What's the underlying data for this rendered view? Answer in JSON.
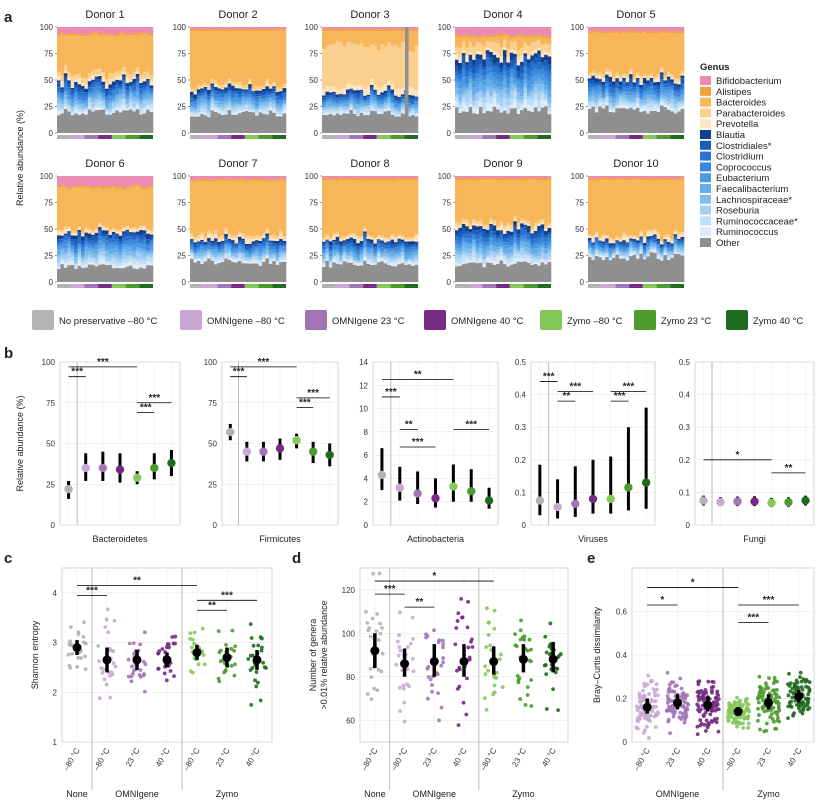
{
  "panels": {
    "a": "a",
    "b": "b",
    "c": "c",
    "d": "d",
    "e": "e"
  },
  "panel_a": {
    "ylabel": "Relative abundance (%)",
    "yticks": [
      "0",
      "25",
      "50",
      "75",
      "100"
    ],
    "donors": [
      {
        "title": "Donor 1",
        "top": [
          0.06,
          0.33,
          0.05,
          0.02
        ],
        "blue": 0.3,
        "other": 0.2
      },
      {
        "title": "Donor 2",
        "top": [
          0.02,
          0.5,
          0.03,
          0.01
        ],
        "blue": 0.25,
        "other": 0.19
      },
      {
        "title": "Donor 3",
        "top": [
          0.02,
          0.12,
          0.4,
          0.05
        ],
        "blue": 0.22,
        "other": 0.19
      },
      {
        "title": "Donor 4",
        "top": [
          0.08,
          0.04,
          0.08,
          0.03
        ],
        "blue": 0.55,
        "other": 0.22
      },
      {
        "title": "Donor 5",
        "top": [
          0.04,
          0.38,
          0.03,
          0.02
        ],
        "blue": 0.3,
        "other": 0.23
      },
      {
        "title": "Donor 6",
        "top": [
          0.1,
          0.38,
          0.02,
          0.02
        ],
        "blue": 0.33,
        "other": 0.15
      },
      {
        "title": "Donor 7",
        "top": [
          0.03,
          0.5,
          0.03,
          0.02
        ],
        "blue": 0.22,
        "other": 0.2
      },
      {
        "title": "Donor 8",
        "top": [
          0.02,
          0.52,
          0.02,
          0.02
        ],
        "blue": 0.24,
        "other": 0.18
      },
      {
        "title": "Donor 9",
        "top": [
          0.02,
          0.4,
          0.03,
          0.02
        ],
        "blue": 0.35,
        "other": 0.18
      },
      {
        "title": "Donor 10",
        "top": [
          0.02,
          0.52,
          0.02,
          0.02
        ],
        "blue": 0.17,
        "other": 0.25
      }
    ],
    "genus_title": "Genus",
    "genera": [
      {
        "name": "Bifidobacterium",
        "color": "#e98bb2"
      },
      {
        "name": "Alistipes",
        "color": "#f2a23a"
      },
      {
        "name": "Bacteroides",
        "color": "#f8b65a"
      },
      {
        "name": "Parabacteroides",
        "color": "#fbd08f"
      },
      {
        "name": "Prevotella",
        "color": "#fde5c2"
      },
      {
        "name": "Blautia",
        "color": "#103f8e"
      },
      {
        "name": "Clostridiales*",
        "color": "#1a5cb8"
      },
      {
        "name": "Clostridium",
        "color": "#2a72d0"
      },
      {
        "name": "Coprococcus",
        "color": "#3a88dc"
      },
      {
        "name": "Eubacterium",
        "color": "#4c9ae2"
      },
      {
        "name": "Faecalibacterium",
        "color": "#65ace8"
      },
      {
        "name": "Lachnospiraceae*",
        "color": "#83bdee"
      },
      {
        "name": "Roseburia",
        "color": "#a3cff3"
      },
      {
        "name": "Ruminococcaceae*",
        "color": "#c0def7"
      },
      {
        "name": "Ruminococcus",
        "color": "#dcecfa"
      },
      {
        "name": "Other",
        "color": "#8f8f8f"
      }
    ]
  },
  "conditions": [
    {
      "label": "No preservative –80 °C",
      "color": "#b3b3b3"
    },
    {
      "label": "OMNIgene –80 °C",
      "color": "#c9a8d3"
    },
    {
      "label": "OMNIgene 23 °C",
      "color": "#a276b6"
    },
    {
      "label": "OMNIgene 40 °C",
      "color": "#762a83"
    },
    {
      "label": "Zymo –80 °C",
      "color": "#85c85a"
    },
    {
      "label": "Zymo 23 °C",
      "color": "#4d9a2e"
    },
    {
      "label": "Zymo 40 °C",
      "color": "#1f6b1f"
    }
  ],
  "chart_data": [
    {
      "type": "scatter",
      "id": "b1",
      "title": "Bacteroidetes",
      "ylabel": "Relative abundance (%)",
      "ylim": [
        0,
        100
      ],
      "yticks": [
        "0",
        "25",
        "50",
        "75",
        "100"
      ],
      "median": [
        22,
        35,
        35,
        34,
        29,
        35,
        38
      ],
      "low": [
        16,
        27,
        27,
        26,
        25,
        28,
        30
      ],
      "high": [
        27,
        44,
        45,
        44,
        33,
        44,
        46
      ],
      "brackets": [
        {
          "from": 0,
          "to": 1,
          "y": 91,
          "label": "***"
        },
        {
          "from": 0,
          "to": 4,
          "y": 97,
          "label": "***"
        },
        {
          "from": 4,
          "to": 6,
          "y": 75,
          "label": "***"
        },
        {
          "from": 4,
          "to": 5,
          "y": 69,
          "label": "***"
        }
      ]
    },
    {
      "type": "scatter",
      "id": "b2",
      "title": "Firmicutes",
      "ylim": [
        0,
        100
      ],
      "yticks": [
        "0",
        "25",
        "50",
        "75",
        "100"
      ],
      "median": [
        57,
        45,
        45,
        47,
        52,
        45,
        43
      ],
      "low": [
        52,
        39,
        39,
        40,
        47,
        38,
        36
      ],
      "high": [
        62,
        51,
        51,
        53,
        56,
        51,
        50
      ],
      "brackets": [
        {
          "from": 0,
          "to": 1,
          "y": 91,
          "label": "***"
        },
        {
          "from": 0,
          "to": 4,
          "y": 97,
          "label": "***"
        },
        {
          "from": 4,
          "to": 6,
          "y": 78,
          "label": "***"
        },
        {
          "from": 4,
          "to": 5,
          "y": 72,
          "label": "***"
        }
      ]
    },
    {
      "type": "scatter",
      "id": "b3",
      "title": "Actinobacteria",
      "ylim": [
        0,
        14
      ],
      "yticks": [
        "0",
        "2",
        "4",
        "6",
        "8",
        "10",
        "12",
        "14"
      ],
      "median": [
        4.3,
        3.2,
        2.7,
        2.3,
        3.3,
        2.9,
        2.1
      ],
      "low": [
        3.0,
        2.1,
        1.8,
        1.5,
        2.0,
        2.0,
        1.4
      ],
      "high": [
        6.6,
        5.0,
        4.6,
        4.0,
        5.2,
        4.8,
        3.2
      ],
      "brackets": [
        {
          "from": 0,
          "to": 1,
          "y": 11,
          "label": "***"
        },
        {
          "from": 0,
          "to": 4,
          "y": 12.5,
          "label": "**"
        },
        {
          "from": 1,
          "to": 2,
          "y": 8.2,
          "label": "**"
        },
        {
          "from": 1,
          "to": 3,
          "y": 6.7,
          "label": "***"
        },
        {
          "from": 4,
          "to": 6,
          "y": 8.2,
          "label": "***"
        }
      ]
    },
    {
      "type": "scatter",
      "id": "b4",
      "title": "Viruses",
      "ylim": [
        0,
        0.5
      ],
      "yticks": [
        "0",
        "0.1",
        "0.2",
        "0.3",
        "0.4",
        "0.5"
      ],
      "median": [
        0.075,
        0.055,
        0.065,
        0.08,
        0.08,
        0.115,
        0.13
      ],
      "low": [
        0.03,
        0.02,
        0.025,
        0.035,
        0.035,
        0.045,
        0.05
      ],
      "high": [
        0.185,
        0.14,
        0.18,
        0.2,
        0.21,
        0.3,
        0.36
      ],
      "brackets": [
        {
          "from": 0,
          "to": 1,
          "y": 0.44,
          "label": "***"
        },
        {
          "from": 1,
          "to": 3,
          "y": 0.41,
          "label": "***"
        },
        {
          "from": 1,
          "to": 2,
          "y": 0.38,
          "label": "**"
        },
        {
          "from": 4,
          "to": 6,
          "y": 0.41,
          "label": "***"
        },
        {
          "from": 4,
          "to": 5,
          "y": 0.38,
          "label": "***"
        }
      ]
    },
    {
      "type": "scatter",
      "id": "b5",
      "title": "Fungi",
      "ylim": [
        0,
        0.5
      ],
      "yticks": [
        "0",
        "0.1",
        "0.2",
        "0.3",
        "0.4",
        "0.5"
      ],
      "median": [
        0.075,
        0.07,
        0.072,
        0.072,
        0.068,
        0.07,
        0.075
      ],
      "low": [
        0.06,
        0.058,
        0.058,
        0.058,
        0.055,
        0.056,
        0.06
      ],
      "high": [
        0.09,
        0.085,
        0.087,
        0.088,
        0.083,
        0.085,
        0.09
      ],
      "brackets": [
        {
          "from": 0,
          "to": 4,
          "y": 0.2,
          "label": "*"
        },
        {
          "from": 4,
          "to": 6,
          "y": 0.16,
          "label": "**"
        }
      ]
    },
    {
      "type": "scatter",
      "id": "c",
      "ylabel": "Shannon entropy",
      "ylim": [
        1,
        4.5
      ],
      "yticks": [
        "1",
        "2",
        "3",
        "4"
      ],
      "xticks": [
        "–80 °C",
        "–80 °C",
        "23 °C",
        "40 °C",
        "–80 °C",
        "23 °C",
        "40 °C"
      ],
      "groups": [
        "None",
        "OMNIgene",
        "Zymo"
      ],
      "median": [
        2.9,
        2.65,
        2.65,
        2.65,
        2.8,
        2.7,
        2.65
      ],
      "low": [
        2.75,
        2.4,
        2.45,
        2.5,
        2.65,
        2.5,
        2.45
      ],
      "high": [
        3.05,
        2.9,
        2.85,
        2.8,
        2.95,
        2.9,
        2.85
      ],
      "brackets": [
        {
          "from": 0,
          "to": 1,
          "y": 3.95,
          "label": "***"
        },
        {
          "from": 0,
          "to": 4,
          "y": 4.15,
          "label": "**"
        },
        {
          "from": 4,
          "to": 6,
          "y": 3.85,
          "label": "***"
        },
        {
          "from": 4,
          "to": 5,
          "y": 3.65,
          "label": "**"
        }
      ]
    },
    {
      "type": "scatter",
      "id": "d",
      "ylabel": "Number of genera\n>0.01% relative abundance",
      "ylim": [
        50,
        130
      ],
      "yticks": [
        "60",
        "80",
        "100",
        "120"
      ],
      "xticks": [
        "–80 °C",
        "–80 °C",
        "23 °C",
        "40 °C",
        "–80 °C",
        "23 °C",
        "40 °C"
      ],
      "groups": [
        "None",
        "OMNIgene",
        "Zymo"
      ],
      "median": [
        92,
        86,
        87,
        87,
        87,
        88,
        88
      ],
      "low": [
        84,
        80,
        80,
        80,
        81,
        82,
        82
      ],
      "high": [
        100,
        93,
        95,
        95,
        94,
        95,
        96
      ],
      "brackets": [
        {
          "from": 0,
          "to": 1,
          "y": 118,
          "label": "***"
        },
        {
          "from": 0,
          "to": 4,
          "y": 124,
          "label": "*"
        },
        {
          "from": 1,
          "to": 2,
          "y": 112,
          "label": "**"
        }
      ]
    },
    {
      "type": "scatter",
      "id": "e",
      "ylabel": "Bray–Curtis dissimilarity",
      "ylim": [
        0,
        0.8
      ],
      "yticks": [
        "0",
        "0.2",
        "0.4",
        "0.6"
      ],
      "xticks": [
        "–80 °C",
        "23 °C",
        "40 °C",
        "–80 °C",
        "23 °C",
        "40 °C"
      ],
      "groups": [
        "OMNIgene",
        "Zymo"
      ],
      "median": [
        0.16,
        0.18,
        0.17,
        0.14,
        0.18,
        0.21
      ],
      "low": [
        0.13,
        0.15,
        0.14,
        0.12,
        0.15,
        0.18
      ],
      "high": [
        0.2,
        0.22,
        0.21,
        0.16,
        0.22,
        0.24
      ],
      "brackets": [
        {
          "from": 0,
          "to": 3,
          "y": 0.71,
          "label": "*"
        },
        {
          "from": 0,
          "to": 1,
          "y": 0.63,
          "label": "*"
        },
        {
          "from": 3,
          "to": 5,
          "y": 0.63,
          "label": "***"
        },
        {
          "from": 3,
          "to": 4,
          "y": 0.55,
          "label": "***"
        }
      ]
    }
  ]
}
